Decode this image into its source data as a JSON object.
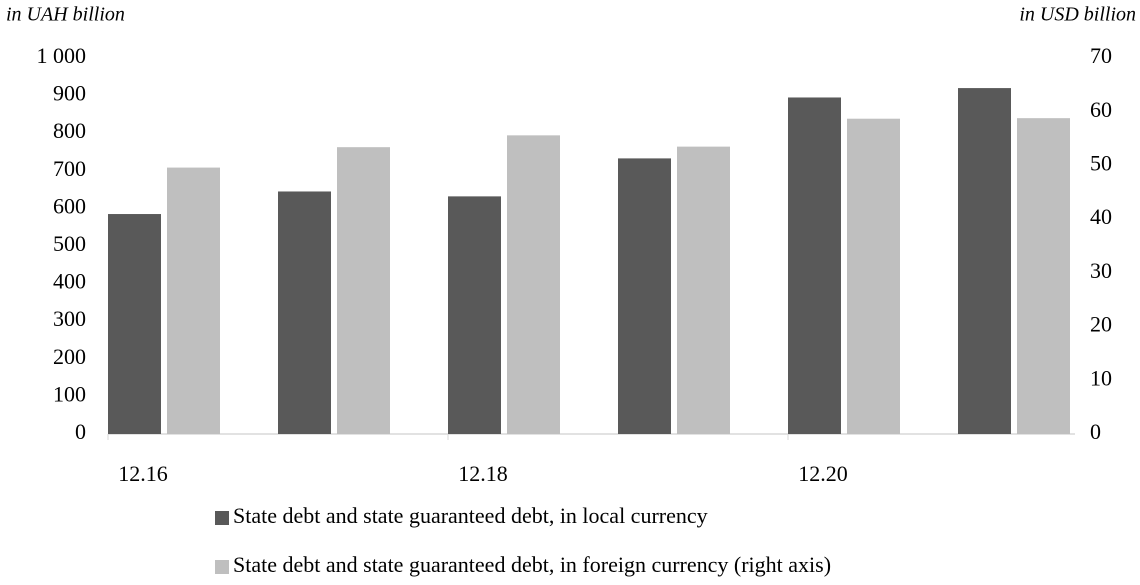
{
  "chart_data": {
    "type": "bar",
    "y_axis_label": "in UAH billion",
    "y2_axis_label": "in USD billion",
    "categories": [
      "12.16",
      null,
      "12.18",
      null,
      "12.20",
      null
    ],
    "series": [
      {
        "name": "State debt and state guaranteed debt, in local currency",
        "color": "#595959",
        "values": [
          585,
          645,
          632,
          733,
          895,
          920
        ],
        "data_labels": [
          [
            "[CELLRANGE]; [VALUE]"
          ],
          [
            "[CELLRANGE];",
            "[VALUE]"
          ],
          [
            "[CELLRANGE];",
            "[VALUE]"
          ],
          [
            "[CELLRANGE];",
            "[VALUE]"
          ],
          [
            "[CELLRANGE];",
            "[VALUE]"
          ],
          [
            "[CELLRANGE];",
            "[VALUE]"
          ]
        ],
        "label_color": "#ffffff"
      },
      {
        "name": "State debt and state guaranteed debt, in foreign currency (right axis)",
        "color": "#bfbfbf",
        "axis": "y2",
        "values": [
          49.6,
          53.4,
          55.6,
          53.5,
          58.7,
          58.8
        ],
        "data_labels": [
          [
            "[CELLRANGE];",
            "[VALUE]"
          ],
          [
            "[CELLRANGE];",
            "[VALUE]"
          ],
          [
            "[CELLRANGE];",
            "[VALUE]"
          ],
          [
            "[CELLRANGE];",
            "[VALUE]"
          ],
          [
            "[CELLRANGE];",
            "[VALUE]"
          ],
          [
            "[CELLRANGE];",
            "[VALUE]"
          ]
        ],
        "label_color": "#e6e6e6"
      }
    ],
    "ylim": [
      0,
      1000
    ],
    "yticks": [
      0,
      100,
      200,
      300,
      400,
      500,
      600,
      700,
      800,
      900,
      {
        "value": 1000,
        "label": "1 000"
      }
    ],
    "y2lim": [
      0,
      70
    ],
    "y2ticks": [
      0,
      10,
      20,
      30,
      40,
      50,
      60,
      70
    ],
    "grid": false
  }
}
